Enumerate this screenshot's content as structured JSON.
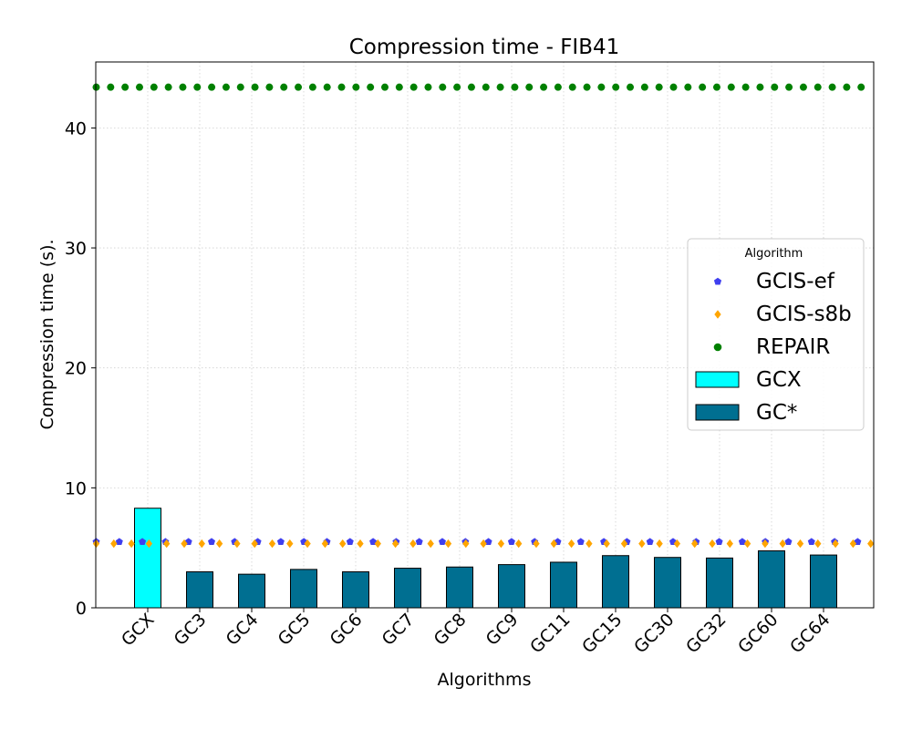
{
  "chart_data": {
    "type": "bar",
    "title": "Compression time -  FIB41",
    "xlabel": "Algorithms",
    "ylabel": "Compression time (s).",
    "ylim": [
      0,
      45.5
    ],
    "yticks": [
      0,
      10,
      20,
      30,
      40
    ],
    "grid": true,
    "categories": [
      "GCX",
      "GC3",
      "GC4",
      "GC5",
      "GC6",
      "GC7",
      "GC8",
      "GC9",
      "GC11",
      "GC15",
      "GC30",
      "GC32",
      "GC60",
      "GC64"
    ],
    "bars": [
      {
        "category": "GCX",
        "value": 8.3,
        "color": "#00ffff",
        "legend": "GCX"
      },
      {
        "category": "GC3",
        "value": 3.0,
        "color": "#006f91",
        "legend": "GC*"
      },
      {
        "category": "GC4",
        "value": 2.8,
        "color": "#006f91",
        "legend": "GC*"
      },
      {
        "category": "GC5",
        "value": 3.2,
        "color": "#006f91",
        "legend": "GC*"
      },
      {
        "category": "GC6",
        "value": 3.0,
        "color": "#006f91",
        "legend": "GC*"
      },
      {
        "category": "GC7",
        "value": 3.3,
        "color": "#006f91",
        "legend": "GC*"
      },
      {
        "category": "GC8",
        "value": 3.4,
        "color": "#006f91",
        "legend": "GC*"
      },
      {
        "category": "GC9",
        "value": 3.6,
        "color": "#006f91",
        "legend": "GC*"
      },
      {
        "category": "GC11",
        "value": 3.8,
        "color": "#006f91",
        "legend": "GC*"
      },
      {
        "category": "GC15",
        "value": 4.35,
        "color": "#006f91",
        "legend": "GC*"
      },
      {
        "category": "GC30",
        "value": 4.2,
        "color": "#006f91",
        "legend": "GC*"
      },
      {
        "category": "GC32",
        "value": 4.15,
        "color": "#006f91",
        "legend": "GC*"
      },
      {
        "category": "GC60",
        "value": 4.75,
        "color": "#006f91",
        "legend": "GC*"
      },
      {
        "category": "GC64",
        "value": 4.4,
        "color": "#006f91",
        "legend": "GC*"
      }
    ],
    "series": [
      {
        "name": "GCIS-ef",
        "type": "reference-line",
        "marker": "pentagon",
        "color": "#3f3fef",
        "value": 5.5
      },
      {
        "name": "GCIS-s8b",
        "type": "reference-line",
        "marker": "diamond",
        "color": "#ffa500",
        "value": 5.35
      },
      {
        "name": "REPAIR",
        "type": "reference-line",
        "marker": "circle",
        "color": "#008000",
        "value": 43.4
      }
    ],
    "legend": {
      "title": "Algorithm",
      "placement": "center-right",
      "entries": [
        {
          "label": "GCIS-ef",
          "kind": "marker",
          "marker": "pentagon",
          "color": "#3f3fef"
        },
        {
          "label": "GCIS-s8b",
          "kind": "marker",
          "marker": "diamond",
          "color": "#ffa500"
        },
        {
          "label": "REPAIR",
          "kind": "marker",
          "marker": "circle",
          "color": "#008000"
        },
        {
          "label": "GCX",
          "kind": "patch",
          "color": "#00ffff"
        },
        {
          "label": "GC*",
          "kind": "patch",
          "color": "#006f91"
        }
      ]
    }
  }
}
